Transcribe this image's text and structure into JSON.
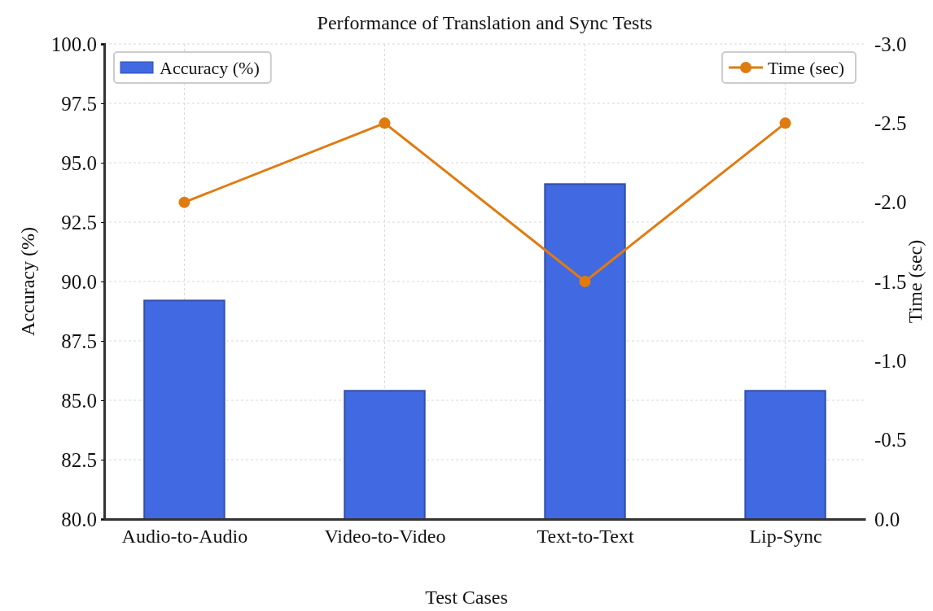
{
  "chart_data": {
    "type": "bar",
    "title": "Performance of Translation and Sync Tests",
    "xlabel": "Test Cases",
    "ylabel": "Accuracy (%)",
    "y2label": "Time (sec)",
    "categories": [
      "Audio-to-Audio",
      "Video-to-Video",
      "Text-to-Text",
      "Lip-Sync"
    ],
    "series": [
      {
        "name": "Accuracy (%)",
        "color": "#4169e1",
        "values": [
          89.2,
          85.4,
          94.1,
          85.4
        ]
      },
      {
        "name": "Time (sec)",
        "type": "line",
        "axis": "y2",
        "color": "#e07b10",
        "marker": "circle",
        "values": [
          -2.0,
          -2.5,
          -1.5,
          -2.5
        ]
      }
    ],
    "ylim": [
      80,
      100
    ],
    "yticks": [
      {
        "value": 80,
        "label": "80.0"
      },
      {
        "value": 82.5,
        "label": "82.5"
      },
      {
        "value": 85,
        "label": "85.0"
      },
      {
        "value": 87.5,
        "label": "87.5"
      },
      {
        "value": 90,
        "label": "90.0"
      },
      {
        "value": 92.5,
        "label": "92.5"
      },
      {
        "value": 95,
        "label": "95.0"
      },
      {
        "value": 97.5,
        "label": "97.5"
      },
      {
        "value": 100,
        "label": "100.0"
      }
    ],
    "y2lim": [
      0,
      -3
    ],
    "y2ticks": [
      {
        "value": 0,
        "label": "0.0"
      },
      {
        "value": -0.5,
        "label": "-0.5"
      },
      {
        "value": -1,
        "label": "-1.0"
      },
      {
        "value": -1.5,
        "label": "-1.5"
      },
      {
        "value": -2,
        "label": "-2.0"
      },
      {
        "value": -2.5,
        "label": "-2.5"
      },
      {
        "value": -3,
        "label": "-3.0"
      }
    ],
    "grid": true,
    "legend": "top"
  }
}
